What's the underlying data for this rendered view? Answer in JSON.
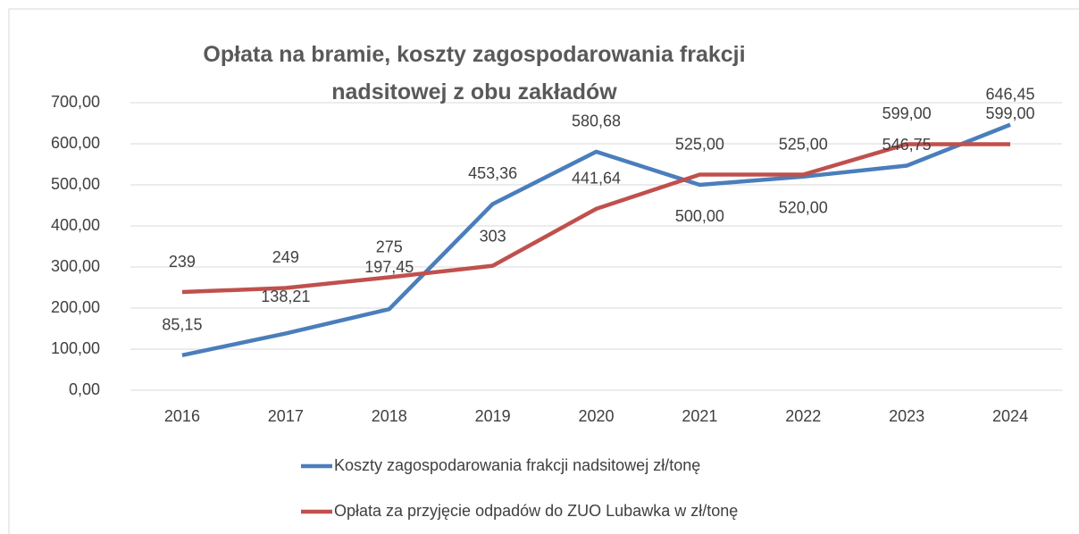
{
  "chart_data": {
    "type": "line",
    "title": "Opłata na bramie, koszty zagospodarowania frakcji nadsitowej z obu zakładów",
    "categories": [
      "2016",
      "2017",
      "2018",
      "2019",
      "2020",
      "2021",
      "2022",
      "2023",
      "2024"
    ],
    "series": [
      {
        "name": "Koszty zagospodarowania frakcji nadsitowej zł/tonę",
        "color": "#4a7ebb",
        "values": [
          85.15,
          138.21,
          197.45,
          453.36,
          580.68,
          500,
          520,
          546.75,
          646.45
        ],
        "value_labels": [
          "85,15",
          "138,21",
          "197,45",
          "453,36",
          "580,68",
          "500,00",
          "520,00",
          "546,75",
          "646,45"
        ]
      },
      {
        "name": "Opłata za przyjęcie odpadów do ZUO Lubawka w zł/tonę",
        "color": "#c0504d",
        "values": [
          239,
          249,
          275,
          303,
          441.64,
          525,
          525,
          599,
          599
        ],
        "value_labels": [
          "239",
          "249",
          "275",
          "303",
          "441,64",
          "525,00",
          "525,00",
          "599,00",
          "599,00"
        ]
      }
    ],
    "ylim": [
      0,
      700
    ],
    "yticks": [
      {
        "value": 0,
        "label": "0,00"
      },
      {
        "value": 100,
        "label": "100,00"
      },
      {
        "value": 200,
        "label": "200,00"
      },
      {
        "value": 300,
        "label": "300,00"
      },
      {
        "value": 400,
        "label": "400,00"
      },
      {
        "value": 500,
        "label": "500,00"
      },
      {
        "value": 600,
        "label": "600,00"
      },
      {
        "value": 700,
        "label": "700,00"
      }
    ],
    "grid": true,
    "legend": "bottom"
  }
}
